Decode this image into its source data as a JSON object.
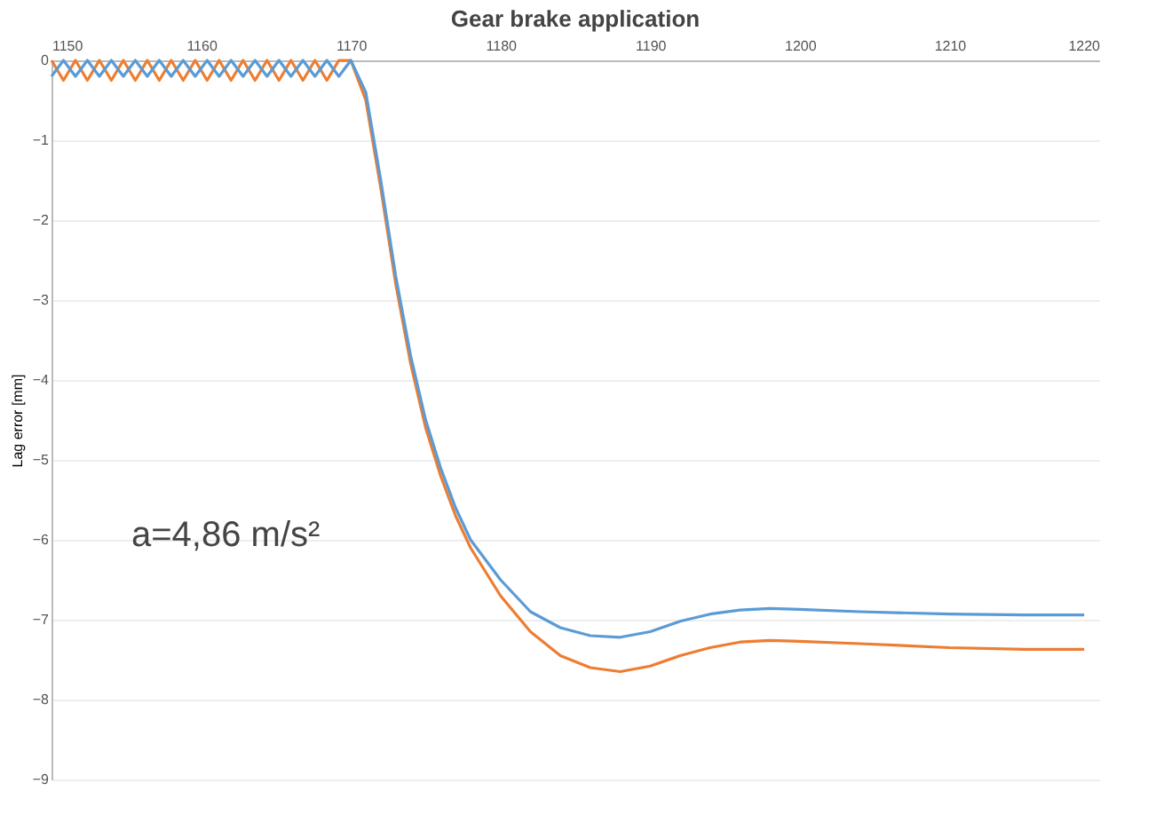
{
  "chart_data": {
    "type": "line",
    "title": "Gear brake application",
    "ylabel": "Lag error [mm]",
    "annotations": [
      "a=4,86 m/s²"
    ],
    "xlim": [
      1150,
      1220
    ],
    "xticks": [
      1150,
      1160,
      1170,
      1180,
      1190,
      1200,
      1210,
      1220
    ],
    "ylim": [
      -9,
      0
    ],
    "yticks": [
      0,
      -1,
      -2,
      -3,
      -4,
      -5,
      -6,
      -7,
      -8,
      -9
    ],
    "grid": "y",
    "legend": false,
    "marker": "none",
    "line_style": "solid",
    "series": [
      {
        "color": "#ed7d31",
        "x": [
          1150,
          1150.8,
          1151.6,
          1152.4,
          1153.2,
          1154,
          1154.8,
          1155.6,
          1156.4,
          1157.2,
          1158,
          1158.8,
          1159.6,
          1160.4,
          1161.2,
          1162,
          1162.8,
          1163.6,
          1164.4,
          1165.2,
          1166,
          1166.8,
          1167.6,
          1168.4,
          1169.2,
          1170,
          1171,
          1172,
          1173,
          1174,
          1175,
          1176,
          1177,
          1178,
          1180,
          1182,
          1184,
          1186,
          1188,
          1190,
          1192,
          1194,
          1196,
          1198,
          1200,
          1204,
          1210,
          1215,
          1219
        ],
        "values": [
          0,
          -0.25,
          0,
          -0.25,
          0,
          -0.25,
          0,
          -0.25,
          0,
          -0.25,
          0,
          -0.25,
          0,
          -0.25,
          0,
          -0.25,
          0,
          -0.25,
          0,
          -0.25,
          0,
          -0.25,
          0,
          -0.25,
          0,
          0,
          -0.5,
          -1.6,
          -2.8,
          -3.8,
          -4.6,
          -5.2,
          -5.7,
          -6.1,
          -6.7,
          -7.15,
          -7.45,
          -7.6,
          -7.65,
          -7.58,
          -7.45,
          -7.35,
          -7.28,
          -7.26,
          -7.27,
          -7.3,
          -7.35,
          -7.37,
          -7.37
        ]
      },
      {
        "color": "#5b9bd5",
        "x": [
          1150,
          1150.8,
          1151.6,
          1152.4,
          1153.2,
          1154,
          1154.8,
          1155.6,
          1156.4,
          1157.2,
          1158,
          1158.8,
          1159.6,
          1160.4,
          1161.2,
          1162,
          1162.8,
          1163.6,
          1164.4,
          1165.2,
          1166,
          1166.8,
          1167.6,
          1168.4,
          1169.2,
          1170,
          1171,
          1172,
          1173,
          1174,
          1175,
          1176,
          1177,
          1178,
          1180,
          1182,
          1184,
          1186,
          1188,
          1190,
          1192,
          1194,
          1196,
          1198,
          1200,
          1204,
          1210,
          1215,
          1219
        ],
        "values": [
          -0.2,
          0,
          -0.2,
          0,
          -0.2,
          0,
          -0.2,
          0,
          -0.2,
          0,
          -0.2,
          0,
          -0.2,
          0,
          -0.2,
          0,
          -0.2,
          0,
          -0.2,
          0,
          -0.2,
          0,
          -0.2,
          0,
          -0.2,
          0,
          -0.4,
          -1.5,
          -2.7,
          -3.7,
          -4.5,
          -5.1,
          -5.6,
          -6.0,
          -6.5,
          -6.9,
          -7.1,
          -7.2,
          -7.22,
          -7.15,
          -7.02,
          -6.93,
          -6.88,
          -6.86,
          -6.87,
          -6.9,
          -6.93,
          -6.94,
          -6.94
        ]
      }
    ]
  }
}
